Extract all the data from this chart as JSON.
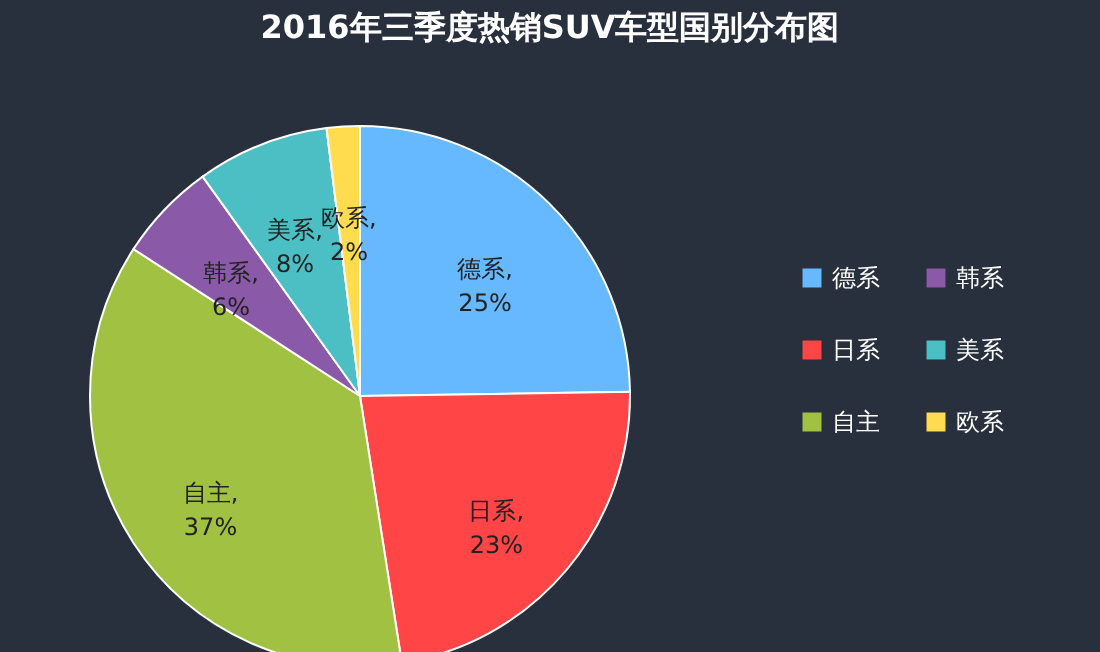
{
  "chart_data": {
    "type": "pie",
    "title": "2016年三季度热销SUV车型国别分布图",
    "categories": [
      "德系",
      "日系",
      "自主",
      "韩系",
      "美系",
      "欧系"
    ],
    "values": [
      25,
      23,
      37,
      6,
      8,
      2
    ],
    "value_labels": [
      "德系, 25%",
      "日系, 23%",
      "自主, 37%",
      "韩系, 6%",
      "美系, 8%",
      "欧系, 2%"
    ],
    "colors": [
      "#66b8ff",
      "#ff4545",
      "#a0c142",
      "#8a5aa8",
      "#4cbfc4",
      "#ffdc4e"
    ],
    "legend": "right"
  }
}
